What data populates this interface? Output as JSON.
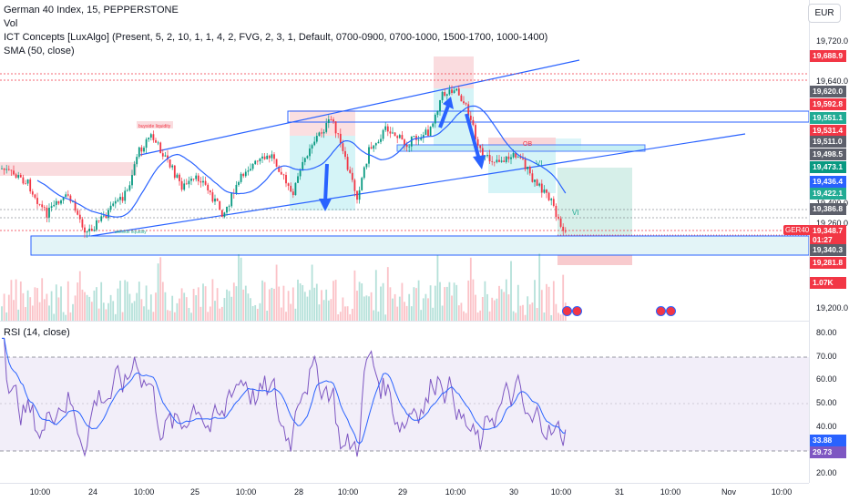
{
  "legend": {
    "title": "German 40 Index, 15, PEPPERSTONE",
    "vol": "Vol",
    "ict": "ICT Concepts [LuxAlgo] (Present, 5, 2, 10, 1, 1, 4, 2, FVG, 2, 3, 1, Default, 0700-0900, 0700-1000, 1500-1700, 1000-1400)",
    "sma": "SMA (50, close)",
    "rsi": "RSI (14, close)"
  },
  "currency": "EUR",
  "symbol_tag": "GER40",
  "chart_labels": {
    "buyside": "buyside liquidity",
    "sellside": "sellside liquidity",
    "ob": "OB",
    "vi1": "VI",
    "vi2": "VI"
  },
  "price_axis": {
    "ticks": [
      "19,720.0",
      "19,640.0",
      "19,400.0",
      "19,260.0",
      "19,200.0"
    ],
    "tags": [
      {
        "text": "19,688.9",
        "color": "#f23645"
      },
      {
        "text": "19,620.0",
        "color": "#5d606b"
      },
      {
        "text": "19,592.8",
        "color": "#f23645"
      },
      {
        "text": "19,551.1",
        "color": "#22ab94"
      },
      {
        "text": "19,531.4",
        "color": "#f23645"
      },
      {
        "text": "19,511.0",
        "color": "#5d606b"
      },
      {
        "text": "19,498.5",
        "color": "#5d606b"
      },
      {
        "text": "19,473.1",
        "color": "#089981"
      },
      {
        "text": "19,436.4",
        "color": "#2962ff"
      },
      {
        "text": "19,422.1",
        "color": "#22ab94"
      },
      {
        "text": "19,386.8",
        "color": "#5d606b"
      },
      {
        "text": "19,348.7",
        "color": "#f23645"
      },
      {
        "text": "01:27",
        "color": "#f23645"
      },
      {
        "text": "19,340.3",
        "color": "#5d606b"
      },
      {
        "text": "19,281.8",
        "color": "#f23645"
      },
      {
        "text": "1.07K",
        "color": "#f23645"
      }
    ]
  },
  "rsi_axis": {
    "ticks": [
      "80.00",
      "70.00",
      "60.00",
      "50.00",
      "40.00",
      "20.00"
    ],
    "tags": [
      {
        "text": "33.88",
        "color": "#2962ff"
      },
      {
        "text": "29.73",
        "color": "#7e57c2"
      }
    ]
  },
  "time_axis": [
    "10:00",
    "24",
    "10:00",
    "25",
    "10:00",
    "28",
    "10:00",
    "29",
    "10:00",
    "30",
    "10:00",
    "31",
    "10:00",
    "Nov",
    "10:00"
  ],
  "colors": {
    "up": "#089981",
    "down": "#f23645",
    "sma": "#2962ff",
    "rsi": "#7e57c2",
    "rsi_ma": "#2962ff"
  }
}
